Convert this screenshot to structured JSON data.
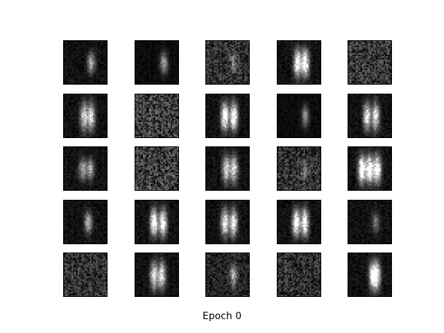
{
  "caption": "Epoch 0",
  "grid": {
    "rows": 5,
    "cols": 5,
    "tiles": [
      {
        "intensity": 0.55,
        "noise": 0.12,
        "blobs": [
          0.62
        ]
      },
      {
        "intensity": 0.55,
        "noise": 0.08,
        "blobs": [
          0.65
        ]
      },
      {
        "intensity": 0.25,
        "noise": 0.35,
        "blobs": [
          0.62
        ]
      },
      {
        "intensity": 0.95,
        "noise": 0.12,
        "blobs": [
          0.45,
          0.63
        ]
      },
      {
        "intensity": 0.05,
        "noise": 0.4,
        "blobs": []
      },
      {
        "intensity": 0.75,
        "noise": 0.12,
        "blobs": [
          0.45,
          0.62
        ]
      },
      {
        "intensity": 0.05,
        "noise": 0.45,
        "blobs": []
      },
      {
        "intensity": 1.0,
        "noise": 0.12,
        "blobs": [
          0.42,
          0.63
        ]
      },
      {
        "intensity": 0.45,
        "noise": 0.08,
        "blobs": [
          0.63
        ]
      },
      {
        "intensity": 0.8,
        "noise": 0.12,
        "blobs": [
          0.42,
          0.62
        ]
      },
      {
        "intensity": 0.55,
        "noise": 0.12,
        "blobs": [
          0.42,
          0.6
        ]
      },
      {
        "intensity": 0.05,
        "noise": 0.45,
        "blobs": []
      },
      {
        "intensity": 0.75,
        "noise": 0.12,
        "blobs": [
          0.45,
          0.63
        ]
      },
      {
        "intensity": 0.25,
        "noise": 0.35,
        "blobs": [
          0.62
        ]
      },
      {
        "intensity": 1.0,
        "noise": 0.12,
        "blobs": [
          0.3,
          0.48,
          0.66
        ]
      },
      {
        "intensity": 0.6,
        "noise": 0.12,
        "blobs": [
          0.55
        ]
      },
      {
        "intensity": 0.95,
        "noise": 0.12,
        "blobs": [
          0.42,
          0.63
        ]
      },
      {
        "intensity": 0.85,
        "noise": 0.12,
        "blobs": [
          0.42,
          0.62
        ]
      },
      {
        "intensity": 0.95,
        "noise": 0.12,
        "blobs": [
          0.42,
          0.62
        ]
      },
      {
        "intensity": 0.35,
        "noise": 0.12,
        "blobs": [
          0.62
        ]
      },
      {
        "intensity": 0.15,
        "noise": 0.35,
        "blobs": []
      },
      {
        "intensity": 0.8,
        "noise": 0.12,
        "blobs": [
          0.42,
          0.6
        ]
      },
      {
        "intensity": 0.5,
        "noise": 0.25,
        "blobs": [
          0.62
        ]
      },
      {
        "intensity": 0.15,
        "noise": 0.35,
        "blobs": []
      },
      {
        "intensity": 0.8,
        "noise": 0.12,
        "blobs": [
          0.55,
          0.65
        ]
      }
    ]
  }
}
